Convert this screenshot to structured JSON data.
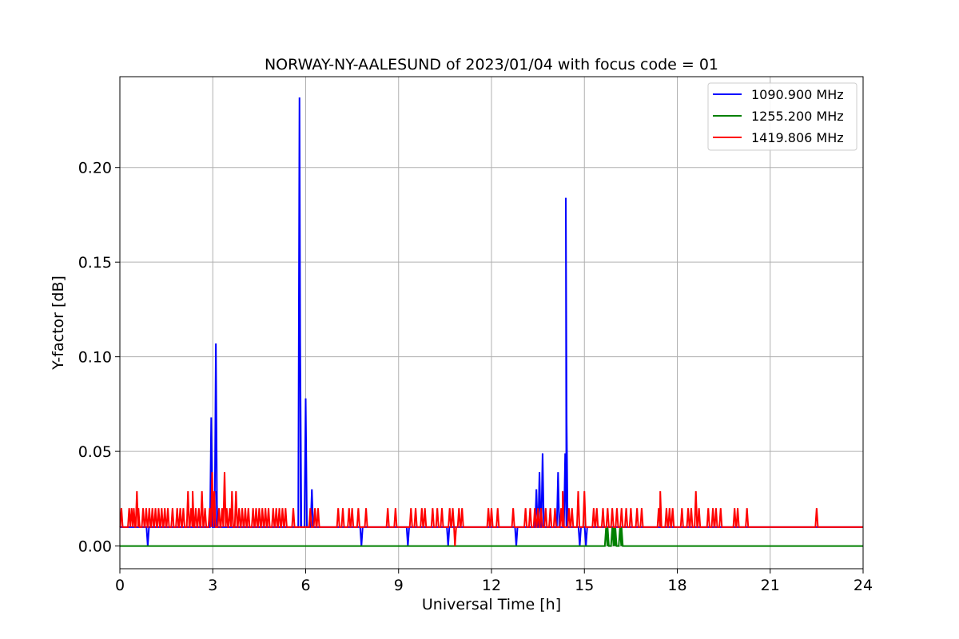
{
  "chart_data": {
    "type": "line",
    "title": "NORWAY-NY-AALESUND of 2023/01/04 with focus code = 01",
    "xlabel": "Universal Time [h]",
    "ylabel": "Y-factor [dB]",
    "xlim": [
      0,
      24
    ],
    "ylim": [
      -0.012,
      0.248
    ],
    "xticks": [
      0,
      3,
      6,
      9,
      12,
      15,
      18,
      21,
      24
    ],
    "xtick_labels": [
      "0",
      "3",
      "6",
      "9",
      "12",
      "15",
      "18",
      "21",
      "24"
    ],
    "yticks": [
      0.0,
      0.05,
      0.1,
      0.15,
      0.2
    ],
    "ytick_labels": [
      "0.00",
      "0.05",
      "0.10",
      "0.15",
      "0.20"
    ],
    "grid": true,
    "legend_position": "top-right",
    "series": [
      {
        "name": "1090.900 MHz",
        "color": "#0000ff",
        "baseline": 0.01,
        "spikes": [
          {
            "x": 0.9,
            "y": 0.0
          },
          {
            "x": 2.95,
            "y": 0.068
          },
          {
            "x": 3.1,
            "y": 0.107
          },
          {
            "x": 3.12,
            "y": 0.029
          },
          {
            "x": 5.8,
            "y": 0.237
          },
          {
            "x": 5.82,
            "y": 0.116
          },
          {
            "x": 6.0,
            "y": 0.078
          },
          {
            "x": 6.2,
            "y": 0.03
          },
          {
            "x": 7.8,
            "y": 0.0
          },
          {
            "x": 9.3,
            "y": 0.0
          },
          {
            "x": 10.6,
            "y": 0.0
          },
          {
            "x": 12.8,
            "y": 0.0
          },
          {
            "x": 13.45,
            "y": 0.03
          },
          {
            "x": 13.55,
            "y": 0.039
          },
          {
            "x": 13.65,
            "y": 0.049
          },
          {
            "x": 14.15,
            "y": 0.039
          },
          {
            "x": 14.4,
            "y": 0.184
          },
          {
            "x": 14.42,
            "y": 0.078
          },
          {
            "x": 14.38,
            "y": 0.049
          },
          {
            "x": 14.85,
            "y": 0.0
          },
          {
            "x": 15.05,
            "y": 0.0
          }
        ]
      },
      {
        "name": "1255.200 MHz",
        "color": "#008000",
        "baseline": 0.0,
        "spikes": [
          {
            "x": 15.7,
            "y": 0.01
          },
          {
            "x": 15.75,
            "y": 0.01
          },
          {
            "x": 15.9,
            "y": 0.01
          },
          {
            "x": 15.95,
            "y": 0.01
          },
          {
            "x": 16.0,
            "y": 0.01
          },
          {
            "x": 16.15,
            "y": 0.01
          },
          {
            "x": 16.2,
            "y": 0.01
          }
        ]
      },
      {
        "name": "1419.806 MHz",
        "color": "#ff0000",
        "baseline": 0.01,
        "spikes": [
          {
            "x": 0.05,
            "y": 0.02
          },
          {
            "x": 0.3,
            "y": 0.02
          },
          {
            "x": 0.38,
            "y": 0.02
          },
          {
            "x": 0.45,
            "y": 0.02
          },
          {
            "x": 0.55,
            "y": 0.029
          },
          {
            "x": 0.6,
            "y": 0.02
          },
          {
            "x": 0.75,
            "y": 0.02
          },
          {
            "x": 0.85,
            "y": 0.02
          },
          {
            "x": 0.95,
            "y": 0.02
          },
          {
            "x": 1.05,
            "y": 0.02
          },
          {
            "x": 1.15,
            "y": 0.02
          },
          {
            "x": 1.25,
            "y": 0.02
          },
          {
            "x": 1.35,
            "y": 0.02
          },
          {
            "x": 1.45,
            "y": 0.02
          },
          {
            "x": 1.55,
            "y": 0.02
          },
          {
            "x": 1.7,
            "y": 0.02
          },
          {
            "x": 1.85,
            "y": 0.02
          },
          {
            "x": 1.95,
            "y": 0.02
          },
          {
            "x": 2.05,
            "y": 0.02
          },
          {
            "x": 2.2,
            "y": 0.029
          },
          {
            "x": 2.3,
            "y": 0.02
          },
          {
            "x": 2.35,
            "y": 0.029
          },
          {
            "x": 2.45,
            "y": 0.02
          },
          {
            "x": 2.55,
            "y": 0.02
          },
          {
            "x": 2.65,
            "y": 0.029
          },
          {
            "x": 2.75,
            "y": 0.02
          },
          {
            "x": 2.9,
            "y": 0.02
          },
          {
            "x": 2.98,
            "y": 0.039
          },
          {
            "x": 3.05,
            "y": 0.029
          },
          {
            "x": 3.2,
            "y": 0.02
          },
          {
            "x": 3.3,
            "y": 0.02
          },
          {
            "x": 3.38,
            "y": 0.039
          },
          {
            "x": 3.45,
            "y": 0.02
          },
          {
            "x": 3.55,
            "y": 0.02
          },
          {
            "x": 3.62,
            "y": 0.029
          },
          {
            "x": 3.75,
            "y": 0.029
          },
          {
            "x": 3.85,
            "y": 0.02
          },
          {
            "x": 3.95,
            "y": 0.02
          },
          {
            "x": 4.05,
            "y": 0.02
          },
          {
            "x": 4.15,
            "y": 0.02
          },
          {
            "x": 4.3,
            "y": 0.02
          },
          {
            "x": 4.4,
            "y": 0.02
          },
          {
            "x": 4.5,
            "y": 0.02
          },
          {
            "x": 4.6,
            "y": 0.02
          },
          {
            "x": 4.7,
            "y": 0.02
          },
          {
            "x": 4.8,
            "y": 0.02
          },
          {
            "x": 4.95,
            "y": 0.02
          },
          {
            "x": 5.05,
            "y": 0.02
          },
          {
            "x": 5.15,
            "y": 0.02
          },
          {
            "x": 5.25,
            "y": 0.02
          },
          {
            "x": 5.35,
            "y": 0.02
          },
          {
            "x": 5.6,
            "y": 0.02
          },
          {
            "x": 6.15,
            "y": 0.02
          },
          {
            "x": 6.3,
            "y": 0.02
          },
          {
            "x": 6.4,
            "y": 0.02
          },
          {
            "x": 7.05,
            "y": 0.02
          },
          {
            "x": 7.2,
            "y": 0.02
          },
          {
            "x": 7.4,
            "y": 0.02
          },
          {
            "x": 7.5,
            "y": 0.02
          },
          {
            "x": 7.7,
            "y": 0.02
          },
          {
            "x": 7.95,
            "y": 0.02
          },
          {
            "x": 8.65,
            "y": 0.02
          },
          {
            "x": 8.9,
            "y": 0.02
          },
          {
            "x": 9.4,
            "y": 0.02
          },
          {
            "x": 9.55,
            "y": 0.02
          },
          {
            "x": 9.75,
            "y": 0.02
          },
          {
            "x": 9.85,
            "y": 0.02
          },
          {
            "x": 10.1,
            "y": 0.02
          },
          {
            "x": 10.25,
            "y": 0.02
          },
          {
            "x": 10.4,
            "y": 0.02
          },
          {
            "x": 10.65,
            "y": 0.02
          },
          {
            "x": 10.75,
            "y": 0.02
          },
          {
            "x": 10.82,
            "y": 0.0
          },
          {
            "x": 10.95,
            "y": 0.02
          },
          {
            "x": 11.05,
            "y": 0.02
          },
          {
            "x": 11.9,
            "y": 0.02
          },
          {
            "x": 12.0,
            "y": 0.02
          },
          {
            "x": 12.2,
            "y": 0.02
          },
          {
            "x": 12.7,
            "y": 0.02
          },
          {
            "x": 13.1,
            "y": 0.02
          },
          {
            "x": 13.25,
            "y": 0.02
          },
          {
            "x": 13.4,
            "y": 0.02
          },
          {
            "x": 13.5,
            "y": 0.02
          },
          {
            "x": 13.6,
            "y": 0.02
          },
          {
            "x": 13.75,
            "y": 0.02
          },
          {
            "x": 13.9,
            "y": 0.02
          },
          {
            "x": 14.05,
            "y": 0.02
          },
          {
            "x": 14.25,
            "y": 0.02
          },
          {
            "x": 14.3,
            "y": 0.029
          },
          {
            "x": 14.5,
            "y": 0.02
          },
          {
            "x": 14.6,
            "y": 0.02
          },
          {
            "x": 14.8,
            "y": 0.029
          },
          {
            "x": 15.0,
            "y": 0.029
          },
          {
            "x": 15.3,
            "y": 0.02
          },
          {
            "x": 15.4,
            "y": 0.02
          },
          {
            "x": 15.6,
            "y": 0.02
          },
          {
            "x": 15.75,
            "y": 0.02
          },
          {
            "x": 15.9,
            "y": 0.02
          },
          {
            "x": 16.05,
            "y": 0.02
          },
          {
            "x": 16.2,
            "y": 0.02
          },
          {
            "x": 16.35,
            "y": 0.02
          },
          {
            "x": 16.5,
            "y": 0.02
          },
          {
            "x": 16.7,
            "y": 0.02
          },
          {
            "x": 16.85,
            "y": 0.02
          },
          {
            "x": 17.4,
            "y": 0.02
          },
          {
            "x": 17.45,
            "y": 0.029
          },
          {
            "x": 17.65,
            "y": 0.02
          },
          {
            "x": 17.75,
            "y": 0.02
          },
          {
            "x": 17.85,
            "y": 0.02
          },
          {
            "x": 18.15,
            "y": 0.02
          },
          {
            "x": 18.35,
            "y": 0.02
          },
          {
            "x": 18.45,
            "y": 0.02
          },
          {
            "x": 18.6,
            "y": 0.029
          },
          {
            "x": 18.7,
            "y": 0.02
          },
          {
            "x": 19.0,
            "y": 0.02
          },
          {
            "x": 19.15,
            "y": 0.02
          },
          {
            "x": 19.25,
            "y": 0.02
          },
          {
            "x": 19.4,
            "y": 0.02
          },
          {
            "x": 19.85,
            "y": 0.02
          },
          {
            "x": 19.95,
            "y": 0.02
          },
          {
            "x": 20.25,
            "y": 0.02
          },
          {
            "x": 22.5,
            "y": 0.02
          }
        ]
      }
    ]
  }
}
